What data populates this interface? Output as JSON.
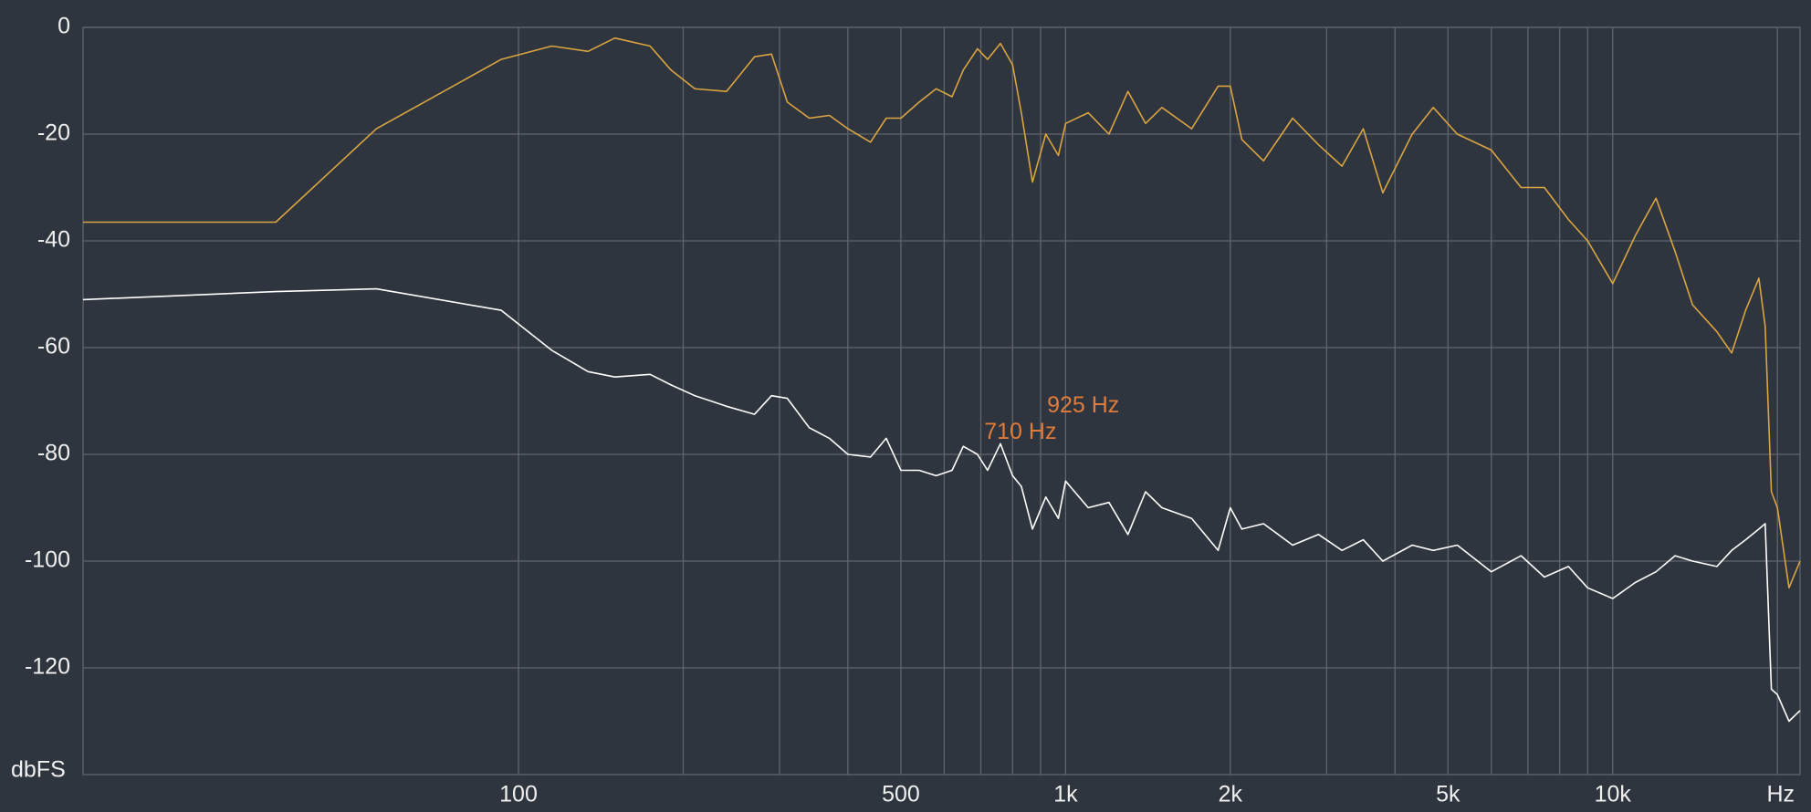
{
  "chart_data": {
    "type": "line",
    "x_label": "Hz",
    "y_label": "dbFS",
    "xscale": "log",
    "xlim": [
      16,
      22000
    ],
    "ylim": [
      -140,
      0
    ],
    "xticks": [
      100,
      500,
      {
        "value": 1000,
        "label": "1k"
      },
      {
        "value": 2000,
        "label": "2k"
      },
      {
        "value": 5000,
        "label": "5k"
      },
      {
        "value": 10000,
        "label": "10k"
      }
    ],
    "x_minor_grid": [
      200,
      300,
      400,
      600,
      700,
      800,
      900,
      3000,
      4000,
      6000,
      7000,
      8000,
      9000,
      20000
    ],
    "yticks": [
      0,
      -20,
      -40,
      -60,
      -80,
      -100,
      -120
    ],
    "grid": true,
    "x": [
      16,
      36,
      55,
      93,
      115,
      134,
      150,
      174,
      190,
      210,
      240,
      270,
      290,
      310,
      340,
      370,
      400,
      440,
      470,
      500,
      540,
      580,
      620,
      650,
      690,
      720,
      760,
      800,
      830,
      870,
      920,
      970,
      1000,
      1100,
      1200,
      1300,
      1400,
      1500,
      1700,
      1900,
      2000,
      2100,
      2300,
      2600,
      2900,
      3200,
      3500,
      3800,
      4300,
      4700,
      5200,
      6000,
      6800,
      7500,
      8300,
      9000,
      10000,
      11000,
      12000,
      13000,
      14000,
      15500,
      16500,
      17500,
      18500,
      19000,
      19500,
      20000,
      21000,
      22000
    ],
    "series": [
      {
        "color": "#d9a441",
        "values": [
          -36.5,
          -36.5,
          -19,
          -6,
          -3.5,
          -4.5,
          -2,
          -3.5,
          -8,
          -11.5,
          -12,
          -5.5,
          -5,
          -14,
          -17,
          -16.5,
          -19,
          -21.5,
          -17,
          -17,
          -14,
          -11.5,
          -13,
          -8,
          -4,
          -6,
          -3,
          -7,
          -16,
          -29,
          -20,
          -24,
          -18,
          -16,
          -20,
          -12,
          -18,
          -15,
          -19,
          -11,
          -11,
          -21,
          -25,
          -17,
          -22,
          -26,
          -19,
          -31,
          -20,
          -15,
          -20,
          -23,
          -30,
          -30,
          -36,
          -40,
          -48,
          -39,
          -32,
          -42,
          -52,
          -57,
          -61,
          -53,
          -47,
          -56,
          -87,
          -90,
          -105,
          -100
        ]
      },
      {
        "color": "#ffffff",
        "values": [
          -51,
          -49.5,
          -49,
          -53,
          -60.5,
          -64.5,
          -65.5,
          -65,
          -67,
          -69,
          -71,
          -72.5,
          -69,
          -69.5,
          -75,
          -77,
          -80,
          -80.5,
          -77,
          -83,
          -83,
          -84,
          -83,
          -78.5,
          -80,
          -83,
          -78,
          -84,
          -86,
          -94,
          -88,
          -92,
          -85,
          -90,
          -89,
          -95,
          -87,
          -90,
          -92,
          -98,
          -90,
          -94,
          -93,
          -97,
          -95,
          -98,
          -96,
          -100,
          -97,
          -98,
          -97,
          -102,
          -99,
          -103,
          -101,
          -105,
          -107,
          -104,
          -102,
          -99,
          -100,
          -101,
          -98,
          -96,
          -94,
          -93,
          -124,
          -125,
          -130,
          -128
        ]
      }
    ],
    "annotations": [
      {
        "text": "710 Hz",
        "x": 710,
        "y": -76
      },
      {
        "text": "925 Hz",
        "x": 925,
        "y": -71
      }
    ],
    "annotation_color": "#e07b39"
  }
}
